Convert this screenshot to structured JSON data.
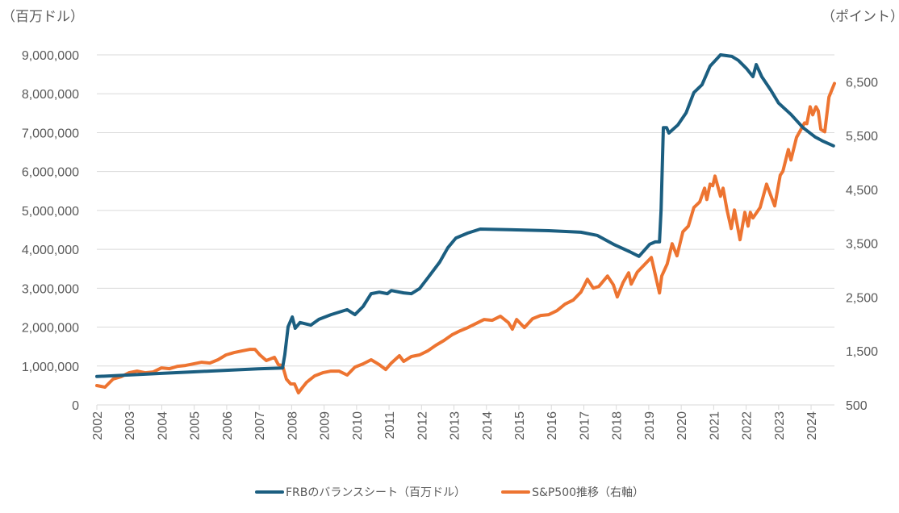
{
  "chart_data": {
    "type": "line",
    "left_unit_label": "（百万ドル）",
    "right_unit_label": "（ポイント）",
    "xlim": [
      2002,
      2024.75
    ],
    "x_ticks": [
      "2002",
      "2003",
      "2004",
      "2005",
      "2006",
      "2007",
      "2008",
      "2009",
      "2010",
      "2011",
      "2012",
      "2013",
      "2014",
      "2015",
      "2016",
      "2017",
      "2018",
      "2019",
      "2020",
      "2021",
      "2022",
      "2023",
      "2024"
    ],
    "y_left": {
      "range": [
        0,
        9000000
      ],
      "ticks": [
        "0",
        "1,000,000",
        "2,000,000",
        "3,000,000",
        "4,000,000",
        "5,000,000",
        "6,000,000",
        "7,000,000",
        "8,000,000",
        "9,000,000"
      ],
      "grid": true
    },
    "y_right": {
      "range": [
        500,
        7000
      ],
      "ticks": [
        "500",
        "1,500",
        "2,500",
        "3,500",
        "4,500",
        "5,500",
        "6,500"
      ]
    },
    "legend_position": "bottom",
    "colors": {
      "frb": "#1b5e80",
      "sp500": "#ed7431",
      "grid": "#d9d9d9",
      "text": "#595959"
    },
    "series": [
      {
        "name": "FRBのバランスシート（百万ドル）",
        "axis": "left",
        "x": [
          2002.0,
          2002.99,
          2003.99,
          2004.98,
          2005.98,
          2006.97,
          2007.72,
          2007.79,
          2007.89,
          2008.02,
          2008.11,
          2008.26,
          2008.59,
          2008.84,
          2009.21,
          2009.71,
          2009.95,
          2010.2,
          2010.45,
          2010.7,
          2010.95,
          2011.07,
          2011.45,
          2011.69,
          2011.94,
          2012.19,
          2012.56,
          2012.81,
          2013.06,
          2013.43,
          2013.81,
          2014.93,
          2015.92,
          2016.91,
          2017.41,
          2017.91,
          2018.41,
          2018.7,
          2019.03,
          2019.2,
          2019.33,
          2019.38,
          2019.45,
          2019.55,
          2019.62,
          2019.9,
          2020.15,
          2020.39,
          2020.64,
          2020.89,
          2021.21,
          2021.56,
          2021.76,
          2022.01,
          2022.21,
          2022.31,
          2022.48,
          2022.76,
          2023.0,
          2023.38,
          2023.75,
          2024.12,
          2024.37,
          2024.69
        ],
        "values": [
          730000,
          770000,
          810000,
          850000,
          890000,
          930000,
          950000,
          1290000,
          2010000,
          2260000,
          1970000,
          2120000,
          2050000,
          2200000,
          2320000,
          2450000,
          2320000,
          2530000,
          2860000,
          2900000,
          2860000,
          2940000,
          2880000,
          2860000,
          2990000,
          3260000,
          3670000,
          4040000,
          4290000,
          4420000,
          4520000,
          4500000,
          4480000,
          4440000,
          4360000,
          4130000,
          3940000,
          3820000,
          4130000,
          4190000,
          4190000,
          5020000,
          7130000,
          7130000,
          6990000,
          7200000,
          7510000,
          8030000,
          8230000,
          8710000,
          9000000,
          8960000,
          8860000,
          8650000,
          8440000,
          8750000,
          8440000,
          8090000,
          7760000,
          7470000,
          7130000,
          6890000,
          6780000,
          6660000
        ]
      },
      {
        "name": "S&P500推移（右軸）",
        "axis": "right",
        "x": [
          2002.0,
          2002.25,
          2002.5,
          2002.75,
          2002.99,
          2003.24,
          2003.49,
          2003.74,
          2003.99,
          2004.24,
          2004.49,
          2004.73,
          2004.98,
          2005.23,
          2005.48,
          2005.73,
          2005.98,
          2006.23,
          2006.47,
          2006.72,
          2006.87,
          2007.02,
          2007.22,
          2007.47,
          2007.59,
          2007.72,
          2007.84,
          2007.97,
          2008.09,
          2008.21,
          2008.34,
          2008.46,
          2008.71,
          2008.96,
          2009.21,
          2009.46,
          2009.71,
          2009.95,
          2010.2,
          2010.45,
          2010.7,
          2010.9,
          2011.07,
          2011.32,
          2011.45,
          2011.69,
          2011.94,
          2012.19,
          2012.44,
          2012.69,
          2012.94,
          2013.19,
          2013.43,
          2013.68,
          2013.93,
          2014.18,
          2014.43,
          2014.68,
          2014.8,
          2014.93,
          2015.17,
          2015.42,
          2015.67,
          2015.92,
          2016.17,
          2016.42,
          2016.67,
          2016.91,
          2017.11,
          2017.29,
          2017.46,
          2017.73,
          2017.91,
          2018.03,
          2018.21,
          2018.38,
          2018.46,
          2018.65,
          2019.08,
          2019.33,
          2019.4,
          2019.57,
          2019.72,
          2019.87,
          2020.05,
          2020.22,
          2020.39,
          2020.57,
          2020.72,
          2020.79,
          2020.89,
          2020.97,
          2021.04,
          2021.21,
          2021.29,
          2021.41,
          2021.54,
          2021.64,
          2021.81,
          2021.96,
          2022.06,
          2022.13,
          2022.21,
          2022.43,
          2022.63,
          2022.88,
          2023.05,
          2023.13,
          2023.3,
          2023.38,
          2023.55,
          2023.8,
          2023.87,
          2023.97,
          2024.05,
          2024.15,
          2024.22,
          2024.3,
          2024.42,
          2024.55,
          2024.72
        ],
        "values": [
          859,
          829,
          979,
          1024,
          1098,
          1128,
          1098,
          1113,
          1188,
          1173,
          1218,
          1233,
          1263,
          1293,
          1278,
          1338,
          1428,
          1472,
          1502,
          1532,
          1532,
          1428,
          1323,
          1383,
          1248,
          1233,
          979,
          889,
          889,
          724,
          829,
          919,
          1039,
          1098,
          1128,
          1128,
          1054,
          1203,
          1263,
          1338,
          1248,
          1158,
          1278,
          1413,
          1308,
          1398,
          1428,
          1502,
          1607,
          1697,
          1802,
          1876,
          1936,
          2011,
          2086,
          2071,
          2146,
          2026,
          1906,
          2086,
          1936,
          2101,
          2161,
          2176,
          2250,
          2370,
          2445,
          2594,
          2834,
          2669,
          2699,
          2894,
          2729,
          2505,
          2774,
          2953,
          2744,
          2968,
          3238,
          2579,
          2894,
          3118,
          3492,
          3268,
          3716,
          3821,
          4165,
          4270,
          4524,
          4315,
          4599,
          4569,
          4749,
          4375,
          4524,
          4120,
          3776,
          4120,
          3567,
          4075,
          3821,
          4075,
          3971,
          4165,
          4599,
          4195,
          4764,
          4838,
          5242,
          5048,
          5467,
          5736,
          5721,
          6035,
          5886,
          6035,
          5960,
          5616,
          5571,
          6215,
          6469
        ]
      }
    ]
  }
}
